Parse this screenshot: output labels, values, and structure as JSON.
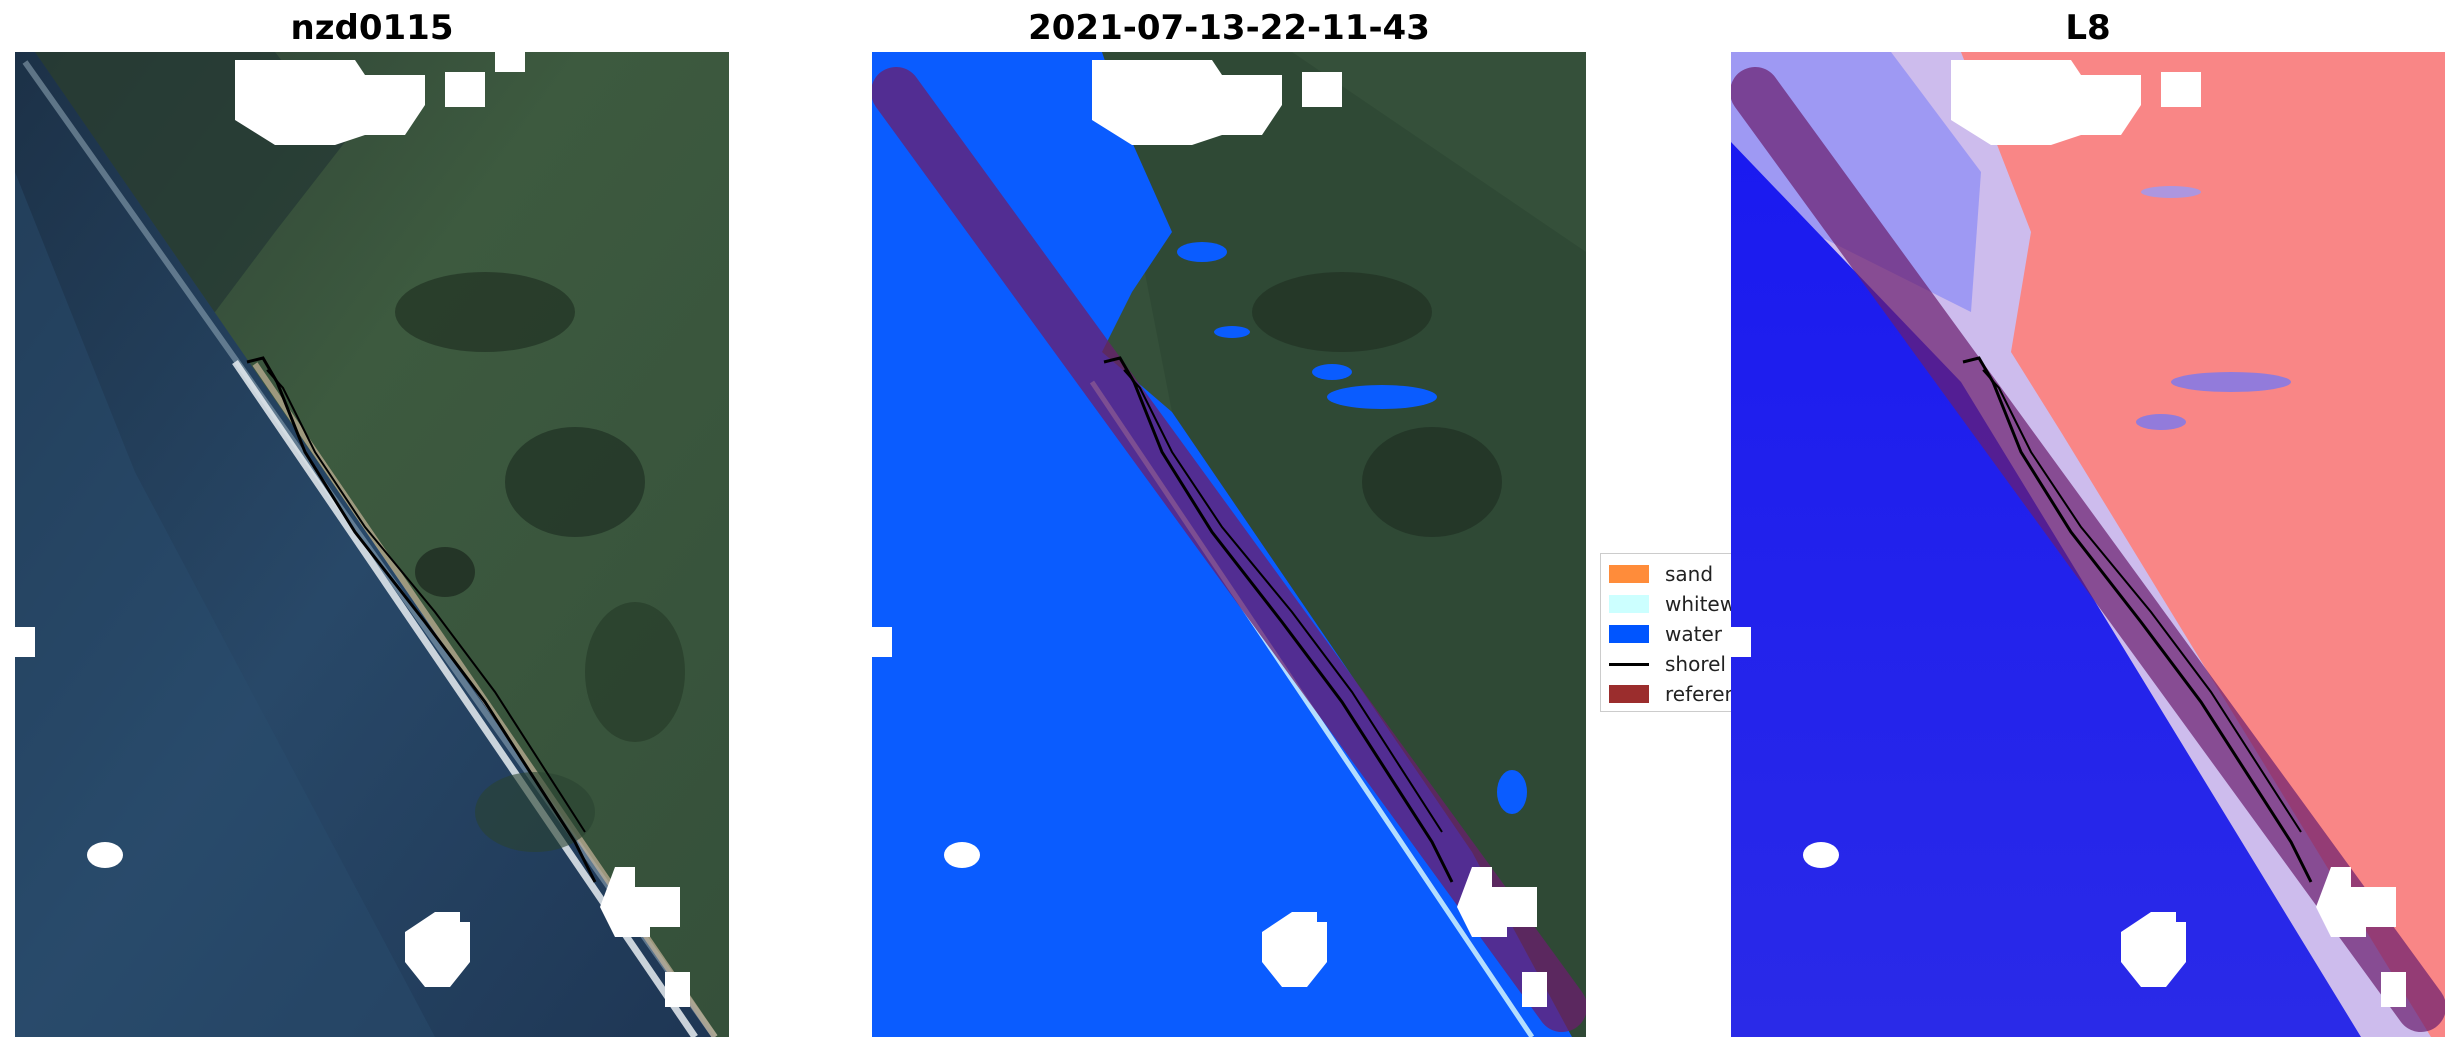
{
  "panels": [
    {
      "title": "nzd0115",
      "kind": "rgb-satellite-image"
    },
    {
      "title": "2021-07-13-22-11-43",
      "kind": "classified-image"
    },
    {
      "title": "L8",
      "kind": "index-image"
    }
  ],
  "legend": {
    "items": [
      {
        "label": "sand",
        "color": "#ff8c3a",
        "type": "patch"
      },
      {
        "label": "whitew",
        "color": "#ccffff",
        "type": "patch"
      },
      {
        "label": "water",
        "color": "#0055ff",
        "type": "patch"
      },
      {
        "label": "shorel",
        "color": "#000000",
        "type": "line"
      },
      {
        "label": "referen",
        "color": "#9b2d2d",
        "type": "patch"
      }
    ]
  },
  "colors": {
    "ocean_dark": "#1e3550",
    "ocean_mid": "#2a4b6c",
    "land_green": "#3c5a40",
    "land_dark": "#26382a",
    "cloud": "#ffffff",
    "classified_water": "#0a5cff",
    "reference_buffer": "#6a1e6e",
    "index_blue": "#1414ee",
    "index_red": "#f87a7a"
  }
}
